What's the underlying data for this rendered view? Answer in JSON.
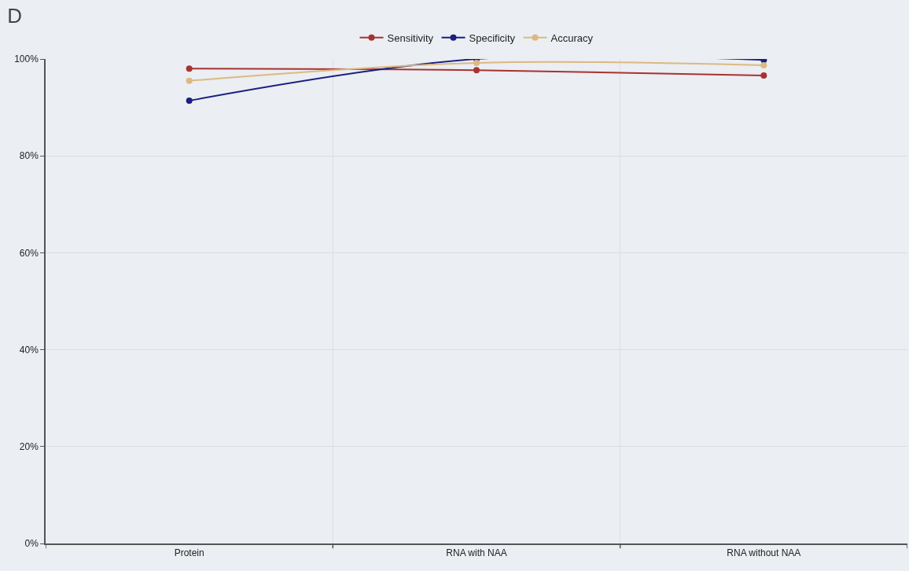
{
  "chart_data": {
    "type": "line",
    "title": "D",
    "categories": [
      "Protein",
      "RNA with NAA",
      "RNA without NAA"
    ],
    "series": [
      {
        "name": "Sensitivity",
        "color": "#a83232",
        "values": [
          98.0,
          97.7,
          96.6
        ]
      },
      {
        "name": "Specificity",
        "color": "#1a1f80",
        "values": [
          91.4,
          100,
          99.8
        ]
      },
      {
        "name": "Accuracy",
        "color": "#dcb982",
        "values": [
          95.5,
          99.2,
          98.7
        ]
      }
    ],
    "ylim": [
      0,
      100
    ],
    "yticks": [
      {
        "value": 0,
        "label": "0%"
      },
      {
        "value": 20,
        "label": "20%"
      },
      {
        "value": 40,
        "label": "40%"
      },
      {
        "value": 60,
        "label": "60%"
      },
      {
        "value": 80,
        "label": "80%"
      },
      {
        "value": 100,
        "label": "100%"
      }
    ],
    "grid": true,
    "legend": "top",
    "marker": "circle",
    "line_style": "solid"
  }
}
